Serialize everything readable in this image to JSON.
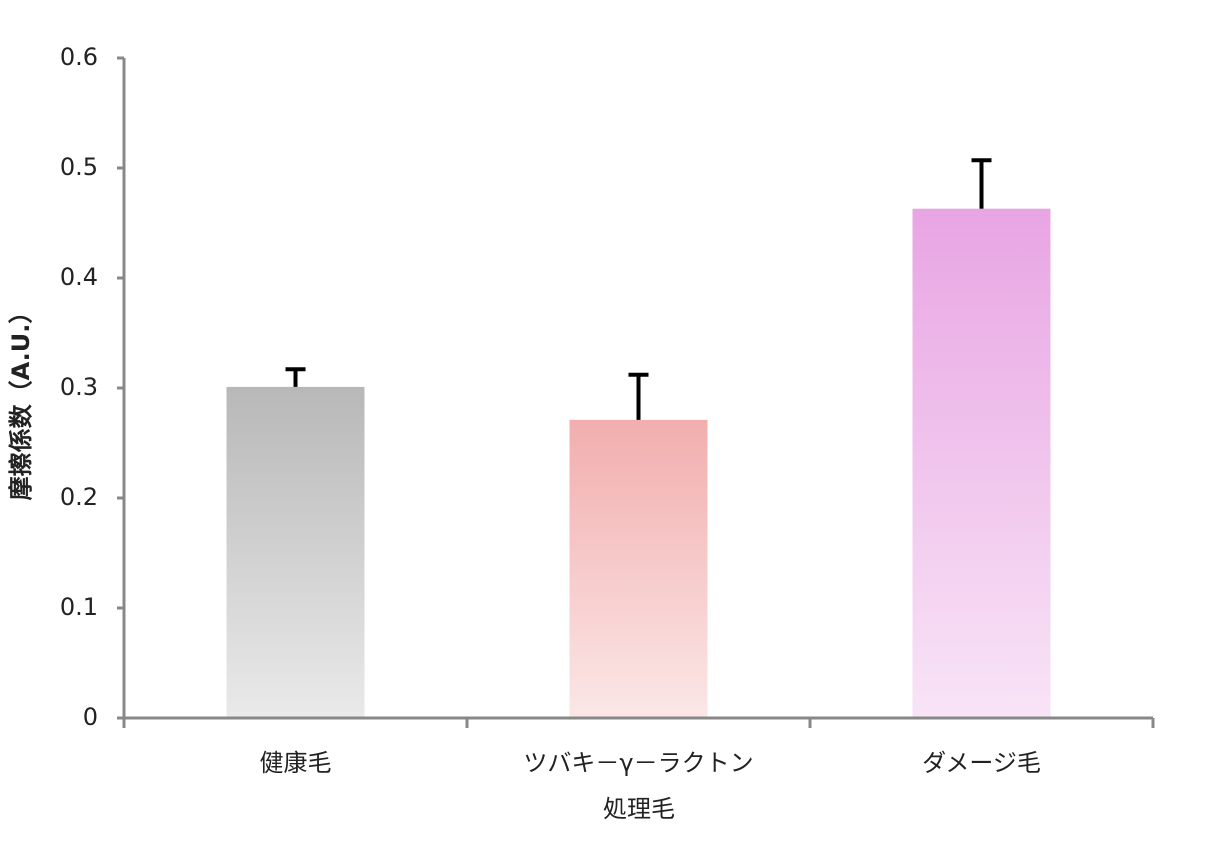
{
  "chart_data": {
    "type": "bar",
    "y_label": "摩擦係数（A.U.）",
    "x_label": "処理毛",
    "categories": [
      "健康毛",
      "ツバキ－γ－ラクトン",
      "ダメージ毛"
    ],
    "values": [
      0.301,
      0.271,
      0.463
    ],
    "errors": [
      0.016,
      0.041,
      0.044
    ],
    "colors": [
      "#b8b8b8",
      "#f2aeae",
      "#e8a5e3"
    ],
    "ylim": [
      0,
      0.6
    ],
    "yticks": [
      0,
      0.1,
      0.2,
      0.3,
      0.4,
      0.5,
      0.6
    ]
  }
}
